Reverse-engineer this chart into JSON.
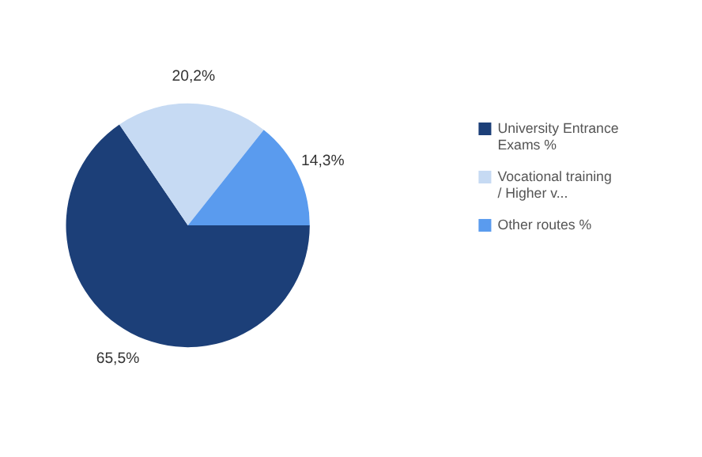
{
  "chart_data": {
    "type": "pie",
    "categories": [
      "University Entrance Exams %",
      "Vocational training / Higher v...",
      "Other routes %"
    ],
    "values": [
      65.5,
      20.2,
      14.3
    ],
    "colors": [
      "#1c3f78",
      "#c6daf3",
      "#5a9bee"
    ],
    "value_labels": [
      "65,5%",
      "20,2%",
      "14,3%"
    ],
    "legend": "right"
  }
}
